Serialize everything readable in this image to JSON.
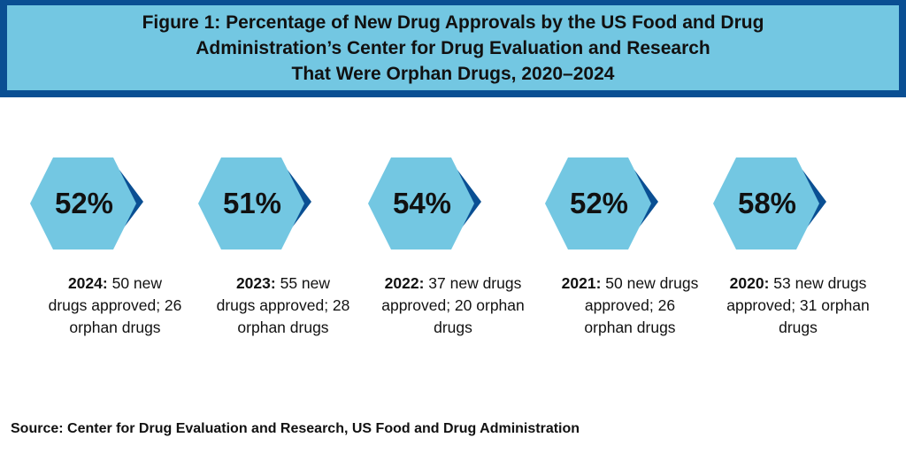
{
  "title": {
    "lines": [
      "Figure 1: Percentage of New Drug Approvals by the US Food and Drug",
      "Administration’s Center for Drug Evaluation and Research",
      "That Were Orphan Drugs, 2020–2024"
    ]
  },
  "colors": {
    "title_background": "#73c7e2",
    "title_border": "#0a4f93",
    "hexagon_fill": "#73c7e2",
    "hexagon_shadow": "#0a4f93",
    "text": "#111111"
  },
  "icons": {
    "hexagon": "hexagon-icon"
  },
  "chart_data": {
    "type": "infographic",
    "items": [
      {
        "year": "2024:",
        "percent_label": "52%",
        "percent": 52,
        "new_drugs": 50,
        "orphan_drugs": 26,
        "text_lines": [
          "50 new",
          "drugs approved; 26",
          "orphan drugs"
        ]
      },
      {
        "year": "2023:",
        "percent_label": "51%",
        "percent": 51,
        "new_drugs": 55,
        "orphan_drugs": 28,
        "text_lines": [
          "55 new",
          "drugs approved; 28",
          "orphan drugs"
        ]
      },
      {
        "year": "2022:",
        "percent_label": "54%",
        "percent": 54,
        "new_drugs": 37,
        "orphan_drugs": 20,
        "text_lines": [
          "37 new drugs",
          "approved; 20 orphan",
          "drugs"
        ]
      },
      {
        "year": "2021:",
        "percent_label": "52%",
        "percent": 52,
        "new_drugs": 50,
        "orphan_drugs": 26,
        "text_lines": [
          "50 new drugs",
          "approved; 26",
          "orphan drugs"
        ]
      },
      {
        "year": "2020:",
        "percent_label": "58%",
        "percent": 58,
        "new_drugs": 53,
        "orphan_drugs": 31,
        "text_lines": [
          "53 new drugs",
          "approved; 31 orphan",
          "drugs"
        ]
      }
    ]
  },
  "source": "Source: Center for Drug Evaluation and Research, US Food and Drug Administration"
}
